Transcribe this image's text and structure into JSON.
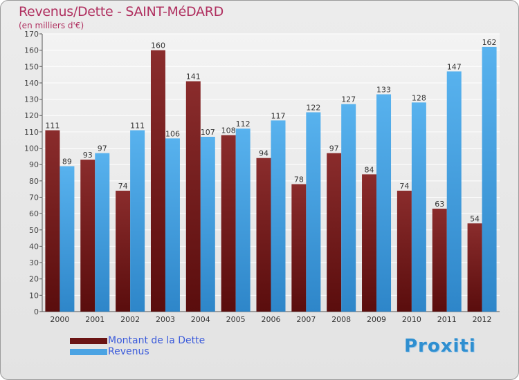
{
  "title": "Revenus/Dette - SAINT-MéDARD",
  "subtitle": "(en milliers d'€)",
  "chart_data": {
    "type": "bar",
    "categories": [
      "2000",
      "2001",
      "2002",
      "2003",
      "2004",
      "2005",
      "2006",
      "2007",
      "2008",
      "2009",
      "2010",
      "2011",
      "2012"
    ],
    "series": [
      {
        "name": "Montant de la Dette",
        "values": [
          111,
          93,
          74,
          160,
          141,
          108,
          94,
          78,
          97,
          84,
          74,
          63,
          54
        ],
        "color": "#7a1c1c"
      },
      {
        "name": "Revenus",
        "values": [
          89,
          97,
          111,
          106,
          107,
          112,
          117,
          122,
          127,
          133,
          128,
          147,
          162
        ],
        "color": "#4ba3e3"
      }
    ],
    "ylim": [
      0,
      170
    ],
    "ytick_step": 10,
    "grid": true,
    "legend_placement": "bottom-left"
  },
  "logo": "Proxiti",
  "colors": {
    "title": "#b03060",
    "legend_text": "#3b5bdb",
    "debt_bar": "#7a1c1c",
    "revenue_bar": "#4ba3e3"
  }
}
